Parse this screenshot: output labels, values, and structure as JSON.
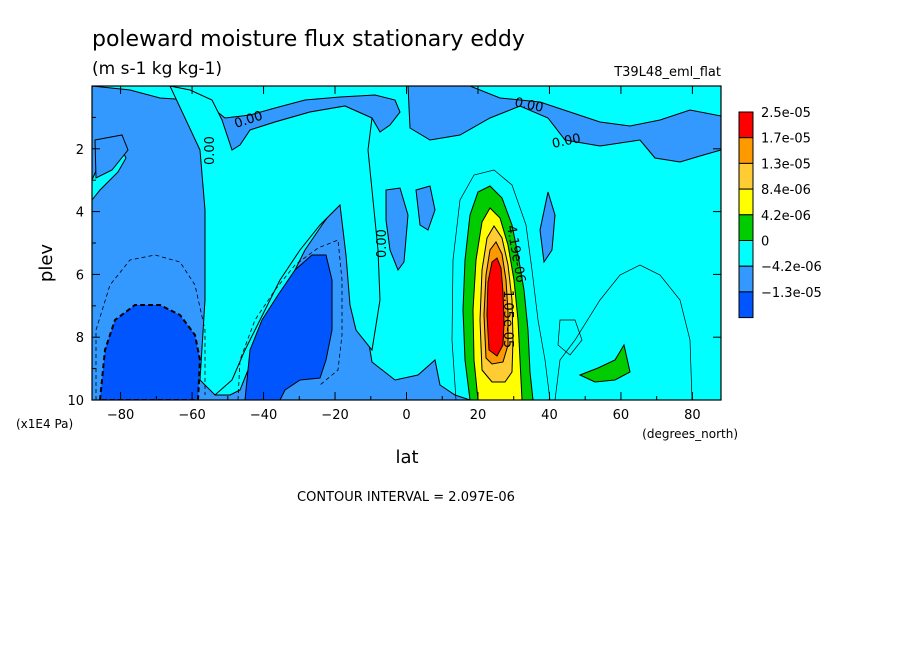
{
  "chart_data": {
    "type": "heatmap",
    "title": "poleward moisture flux stationary eddy",
    "subtitle": "(m s-1 kg kg-1)",
    "run_label": "T39L48_eml_flat",
    "xlabel": "lat",
    "x_units": "(degrees_north)",
    "ylabel": "plev",
    "y_units": "(x1E4 Pa)",
    "xlim": [
      -88,
      88
    ],
    "ylim": [
      0,
      10
    ],
    "y_inverted": true,
    "x_ticks": [
      -80,
      -60,
      -40,
      -20,
      0,
      20,
      40,
      60,
      80
    ],
    "x_tick_labels": [
      "−80",
      "−60",
      "−40",
      "−20",
      "0",
      "20",
      "40",
      "60",
      "80"
    ],
    "y_ticks": [
      2,
      4,
      6,
      8,
      10
    ],
    "y_tick_labels": [
      "2",
      "4",
      "6",
      "8",
      "10"
    ],
    "contour_labels": [
      "0.00",
      "0.00",
      "0.00",
      "0.00",
      "0.00",
      "4.19e-06",
      "1.05e-05"
    ],
    "contour_interval": "CONTOUR INTERVAL = 2.097E-06",
    "legend_position": "right",
    "legend": [
      {
        "label": "2.5e-05",
        "color": "#ff0000"
      },
      {
        "label": "1.7e-05",
        "color": "#ff9900"
      },
      {
        "label": "1.3e-05",
        "color": "#ffcc33"
      },
      {
        "label": "8.4e-06",
        "color": "#ffff00"
      },
      {
        "label": "4.2e-06",
        "color": "#00cc00"
      },
      {
        "label": "0",
        "color": "#00ffff"
      },
      {
        "label": "−4.2e-06",
        "color": "#3399ff"
      },
      {
        "label": "−1.3e-05",
        "color": "#0055ff"
      }
    ],
    "regions": [
      {
        "level": "0",
        "color": "#00ffff"
      },
      {
        "level": "-4.2e-06",
        "color": "#3399ff"
      },
      {
        "level": "-1.3e-05",
        "color": "#0055ff"
      },
      {
        "level": "4.2e-06",
        "color": "#00cc00"
      },
      {
        "level": "8.4e-06",
        "color": "#ffff00"
      },
      {
        "level": "1.3e-05",
        "color": "#ffcc33"
      },
      {
        "level": "1.7e-05",
        "color": "#ff9900"
      },
      {
        "level": "2.5e-05",
        "color": "#ff0000"
      }
    ]
  }
}
